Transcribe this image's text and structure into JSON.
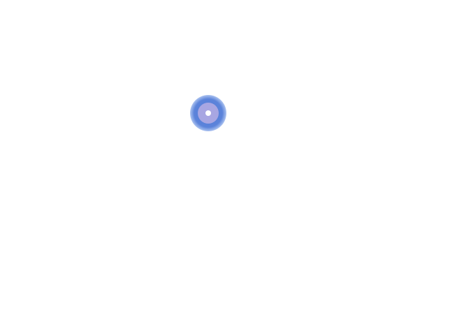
{
  "screen": {
    "background_color": "#ffffff"
  },
  "click_indicator": {
    "icon": "click-target-icon",
    "glow_color": "#4a76d6",
    "ring_color": "#a8a6e2",
    "center_color": "#ffffff"
  }
}
